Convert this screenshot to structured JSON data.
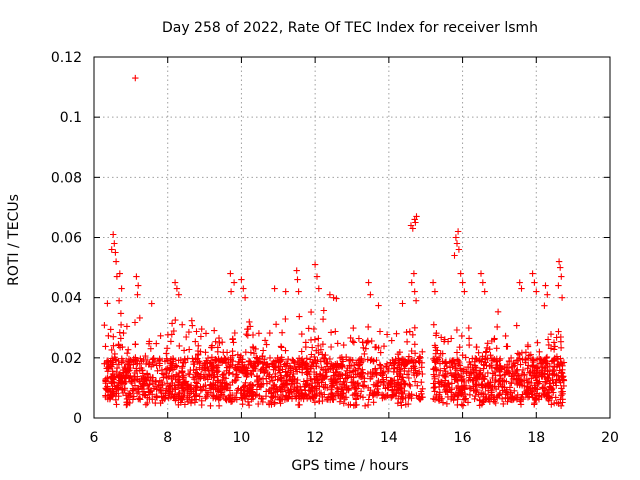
{
  "chart_data": {
    "type": "scatter",
    "title": "Day 258 of 2022, Rate Of TEC Index for receiver lsmh",
    "xlabel": "GPS time / hours",
    "ylabel": "ROTI / TECUs",
    "xlim": [
      6,
      20
    ],
    "ylim": [
      0,
      0.12
    ],
    "x_ticks": [
      "6",
      "8",
      "10",
      "12",
      "14",
      "16",
      "18",
      "20"
    ],
    "y_ticks": [
      "0",
      "0.02",
      "0.04",
      "0.06",
      "0.08",
      "0.1",
      "0.12"
    ],
    "x_tick_values": [
      6,
      8,
      10,
      12,
      14,
      16,
      18,
      20
    ],
    "y_tick_values": [
      0,
      0.02,
      0.04,
      0.06,
      0.08,
      0.1,
      0.12
    ],
    "grid": true,
    "marker": "+",
    "color": "#ff0000",
    "series": [
      {
        "name": "ROTI",
        "segments": [
          {
            "start": 6.28,
            "end": 14.92
          },
          {
            "start": 15.2,
            "end": 18.75
          }
        ],
        "base_range": [
          0.006,
          0.02
        ],
        "highlights": [
          {
            "x": 7.12,
            "y": 0.113
          },
          {
            "x": 6.52,
            "y": 0.061
          },
          {
            "x": 6.55,
            "y": 0.058
          },
          {
            "x": 6.58,
            "y": 0.055
          },
          {
            "x": 6.48,
            "y": 0.056
          },
          {
            "x": 6.6,
            "y": 0.052
          },
          {
            "x": 6.62,
            "y": 0.047
          },
          {
            "x": 6.7,
            "y": 0.048
          },
          {
            "x": 6.75,
            "y": 0.043
          },
          {
            "x": 6.68,
            "y": 0.039
          },
          {
            "x": 7.15,
            "y": 0.047
          },
          {
            "x": 7.2,
            "y": 0.044
          },
          {
            "x": 7.18,
            "y": 0.041
          },
          {
            "x": 8.2,
            "y": 0.045
          },
          {
            "x": 8.25,
            "y": 0.043
          },
          {
            "x": 8.3,
            "y": 0.041
          },
          {
            "x": 9.7,
            "y": 0.048
          },
          {
            "x": 9.8,
            "y": 0.045
          },
          {
            "x": 9.72,
            "y": 0.042
          },
          {
            "x": 10.0,
            "y": 0.046
          },
          {
            "x": 10.05,
            "y": 0.043
          },
          {
            "x": 10.1,
            "y": 0.04
          },
          {
            "x": 10.9,
            "y": 0.043
          },
          {
            "x": 11.2,
            "y": 0.042
          },
          {
            "x": 11.5,
            "y": 0.049
          },
          {
            "x": 11.52,
            "y": 0.046
          },
          {
            "x": 11.55,
            "y": 0.042
          },
          {
            "x": 12.0,
            "y": 0.051
          },
          {
            "x": 12.05,
            "y": 0.047
          },
          {
            "x": 12.1,
            "y": 0.043
          },
          {
            "x": 12.4,
            "y": 0.041
          },
          {
            "x": 12.5,
            "y": 0.04
          },
          {
            "x": 13.45,
            "y": 0.045
          },
          {
            "x": 13.5,
            "y": 0.041
          },
          {
            "x": 14.6,
            "y": 0.064
          },
          {
            "x": 14.65,
            "y": 0.063
          },
          {
            "x": 14.7,
            "y": 0.066
          },
          {
            "x": 14.72,
            "y": 0.065
          },
          {
            "x": 14.75,
            "y": 0.067
          },
          {
            "x": 14.68,
            "y": 0.048
          },
          {
            "x": 14.62,
            "y": 0.045
          },
          {
            "x": 14.7,
            "y": 0.042
          },
          {
            "x": 14.74,
            "y": 0.039
          },
          {
            "x": 15.2,
            "y": 0.045
          },
          {
            "x": 15.25,
            "y": 0.042
          },
          {
            "x": 15.22,
            "y": 0.031
          },
          {
            "x": 15.82,
            "y": 0.06
          },
          {
            "x": 15.85,
            "y": 0.058
          },
          {
            "x": 15.88,
            "y": 0.062
          },
          {
            "x": 15.9,
            "y": 0.056
          },
          {
            "x": 15.78,
            "y": 0.054
          },
          {
            "x": 15.95,
            "y": 0.048
          },
          {
            "x": 16.0,
            "y": 0.045
          },
          {
            "x": 16.05,
            "y": 0.042
          },
          {
            "x": 16.5,
            "y": 0.048
          },
          {
            "x": 16.55,
            "y": 0.045
          },
          {
            "x": 16.6,
            "y": 0.042
          },
          {
            "x": 17.55,
            "y": 0.045
          },
          {
            "x": 17.6,
            "y": 0.043
          },
          {
            "x": 17.9,
            "y": 0.048
          },
          {
            "x": 17.95,
            "y": 0.045
          },
          {
            "x": 18.0,
            "y": 0.042
          },
          {
            "x": 18.25,
            "y": 0.044
          },
          {
            "x": 18.3,
            "y": 0.041
          },
          {
            "x": 18.62,
            "y": 0.052
          },
          {
            "x": 18.65,
            "y": 0.05
          },
          {
            "x": 18.68,
            "y": 0.047
          },
          {
            "x": 18.6,
            "y": 0.044
          },
          {
            "x": 18.7,
            "y": 0.04
          }
        ]
      }
    ]
  }
}
